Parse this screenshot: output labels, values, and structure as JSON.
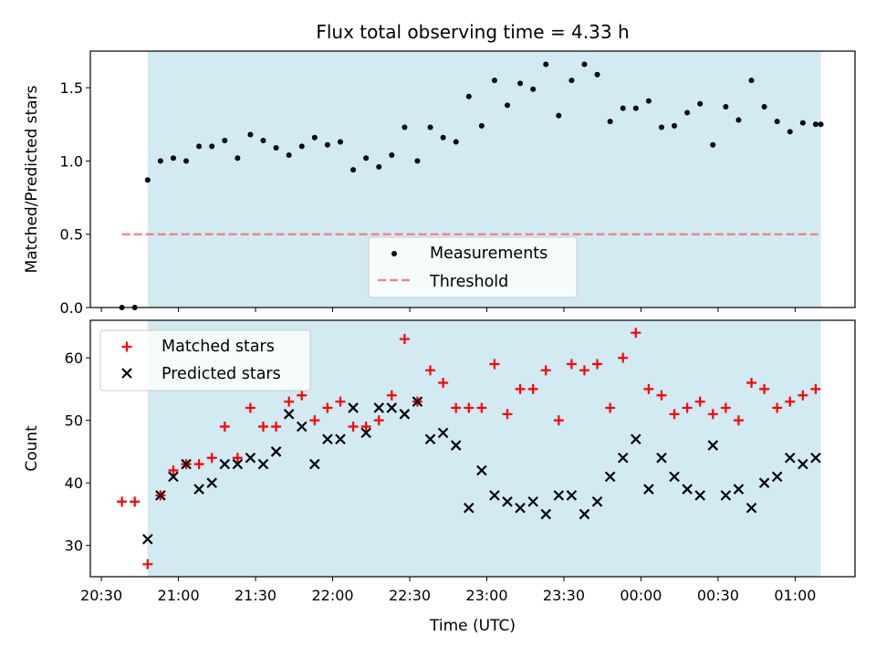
{
  "chart_data": [
    {
      "type": "scatter",
      "title": "Flux total observing time = 4.33 h",
      "xlabel": "",
      "ylabel": "Matched/Predicted stars",
      "ylim": [
        0.0,
        1.75
      ],
      "yticks": [
        "0.0",
        "0.5",
        "1.0",
        "1.5"
      ],
      "shaded_range": [
        "20:48",
        "01:10"
      ],
      "shade_color": "#add8e6",
      "threshold": {
        "name": "Threshold",
        "value": 0.5,
        "x_range": [
          "20:38",
          "01:10"
        ],
        "color": "#f08080",
        "style": "dashed"
      },
      "legend": {
        "placement": "lower-center",
        "entries": [
          "Measurements",
          "Threshold"
        ]
      },
      "series": [
        {
          "name": "Measurements",
          "color": "#000000",
          "marker": "dot",
          "x": [
            "20:38",
            "20:43",
            "20:48",
            "20:53",
            "20:58",
            "21:03",
            "21:08",
            "21:13",
            "21:18",
            "21:23",
            "21:28",
            "21:33",
            "21:38",
            "21:43",
            "21:48",
            "21:53",
            "21:58",
            "22:03",
            "22:08",
            "22:13",
            "22:18",
            "22:23",
            "22:28",
            "22:33",
            "22:38",
            "22:43",
            "22:48",
            "22:53",
            "22:58",
            "23:03",
            "23:08",
            "23:13",
            "23:18",
            "23:23",
            "23:28",
            "23:33",
            "23:38",
            "23:43",
            "23:48",
            "23:53",
            "23:58",
            "00:03",
            "00:08",
            "00:13",
            "00:18",
            "00:23",
            "00:28",
            "00:33",
            "00:38",
            "00:43",
            "00:48",
            "00:53",
            "00:58",
            "01:03",
            "01:08",
            "01:10"
          ],
          "y": [
            0.0,
            0.0,
            0.87,
            1.0,
            1.02,
            1.0,
            1.1,
            1.1,
            1.14,
            1.02,
            1.18,
            1.14,
            1.09,
            1.04,
            1.1,
            1.16,
            1.11,
            1.13,
            0.94,
            1.02,
            0.96,
            1.04,
            1.23,
            1.0,
            1.23,
            1.16,
            1.13,
            1.44,
            1.24,
            1.55,
            1.38,
            1.53,
            1.49,
            1.66,
            1.31,
            1.55,
            1.66,
            1.59,
            1.27,
            1.36,
            1.36,
            1.41,
            1.23,
            1.24,
            1.33,
            1.39,
            1.11,
            1.37,
            1.28,
            1.55,
            1.37,
            1.27,
            1.2,
            1.26,
            1.25,
            1.25
          ]
        }
      ]
    },
    {
      "type": "scatter",
      "xlabel": "Time (UTC)",
      "ylabel": "Count",
      "ylim": [
        25,
        66
      ],
      "yticks": [
        "30",
        "40",
        "50",
        "60"
      ],
      "x_axis_ticks": [
        "20:30",
        "21:00",
        "21:30",
        "22:00",
        "22:30",
        "23:00",
        "23:30",
        "00:00",
        "00:30",
        "01:00"
      ],
      "shaded_range": [
        "20:48",
        "01:10"
      ],
      "shade_color": "#add8e6",
      "legend": {
        "placement": "upper-left",
        "entries": [
          "Matched stars",
          "Predicted stars"
        ]
      },
      "series": [
        {
          "name": "Matched stars",
          "color": "#ff0000",
          "marker": "plus",
          "x": [
            "20:38",
            "20:43",
            "20:48",
            "20:53",
            "20:58",
            "21:03",
            "21:08",
            "21:13",
            "21:18",
            "21:23",
            "21:28",
            "21:33",
            "21:38",
            "21:43",
            "21:48",
            "21:53",
            "21:58",
            "22:03",
            "22:08",
            "22:13",
            "22:18",
            "22:23",
            "22:28",
            "22:33",
            "22:38",
            "22:43",
            "22:48",
            "22:53",
            "22:58",
            "23:03",
            "23:08",
            "23:13",
            "23:18",
            "23:23",
            "23:28",
            "23:33",
            "23:38",
            "23:43",
            "23:48",
            "23:53",
            "23:58",
            "00:03",
            "00:08",
            "00:13",
            "00:18",
            "00:23",
            "00:28",
            "00:33",
            "00:38",
            "00:43",
            "00:48",
            "00:53",
            "00:58",
            "01:03",
            "01:08"
          ],
          "y": [
            37,
            37,
            27,
            38,
            42,
            43,
            43,
            44,
            49,
            44,
            52,
            49,
            49,
            53,
            54,
            50,
            52,
            53,
            49,
            49,
            50,
            54,
            63,
            53,
            58,
            56,
            52,
            52,
            52,
            59,
            51,
            55,
            55,
            58,
            50,
            59,
            58,
            59,
            52,
            60,
            64,
            55,
            54,
            51,
            52,
            53,
            51,
            52,
            50,
            56,
            55,
            52,
            53,
            54,
            55
          ]
        },
        {
          "name": "Predicted stars",
          "color": "#000000",
          "marker": "x",
          "x": [
            "20:48",
            "20:53",
            "20:58",
            "21:03",
            "21:08",
            "21:13",
            "21:18",
            "21:23",
            "21:28",
            "21:33",
            "21:38",
            "21:43",
            "21:48",
            "21:53",
            "21:58",
            "22:03",
            "22:08",
            "22:13",
            "22:18",
            "22:23",
            "22:28",
            "22:33",
            "22:38",
            "22:43",
            "22:48",
            "22:53",
            "22:58",
            "23:03",
            "23:08",
            "23:13",
            "23:18",
            "23:23",
            "23:28",
            "23:33",
            "23:38",
            "23:43",
            "23:48",
            "23:53",
            "23:58",
            "00:03",
            "00:08",
            "00:13",
            "00:18",
            "00:23",
            "00:28",
            "00:33",
            "00:38",
            "00:43",
            "00:48",
            "00:53",
            "00:58",
            "01:03",
            "01:08"
          ],
          "y": [
            31,
            38,
            41,
            43,
            39,
            40,
            43,
            43,
            44,
            43,
            45,
            51,
            49,
            43,
            47,
            47,
            52,
            48,
            52,
            52,
            51,
            53,
            47,
            48,
            46,
            36,
            42,
            38,
            37,
            36,
            37,
            35,
            38,
            38,
            35,
            37,
            41,
            44,
            47,
            39,
            44,
            41,
            39,
            38,
            46,
            38,
            39,
            36,
            40,
            41,
            44,
            43,
            44
          ]
        }
      ]
    }
  ]
}
